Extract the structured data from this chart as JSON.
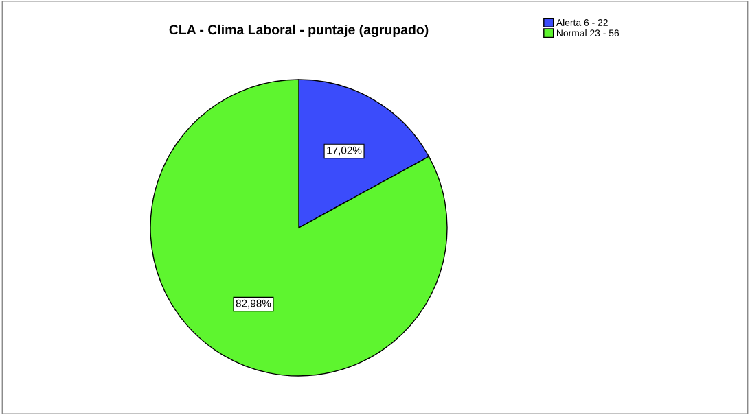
{
  "chart_data": {
    "type": "pie",
    "title": "CLA - Clima Laboral - puntaje (agrupado)",
    "categories": [
      "Alerta 6 - 22",
      "Normal 23 - 56"
    ],
    "values": [
      17.02,
      82.98
    ],
    "colors": [
      "#3b4cfb",
      "#5ef52f"
    ],
    "value_labels": [
      "17,02%",
      "82,98%"
    ],
    "legend": "top right"
  }
}
